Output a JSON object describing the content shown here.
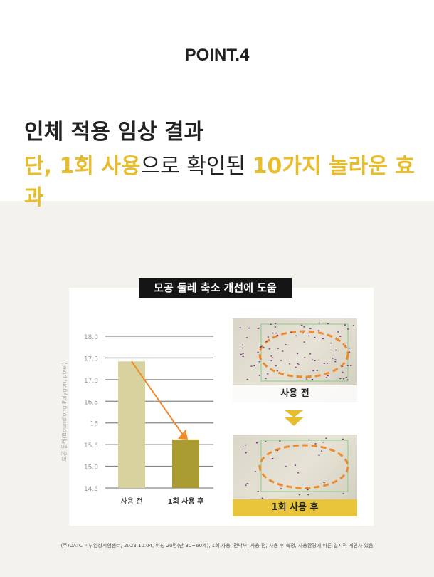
{
  "header": {
    "point": "POINT.4",
    "title": "인체 적용 임상 결과",
    "subtitle_hl1": "단, 1회 사용",
    "subtitle_mid": "으로 확인된 ",
    "subtitle_hl2": "10가지 놀라운 효과"
  },
  "card": {
    "tag": "모공 둘레 축소 개선에 도움",
    "photo_before": "사용 전",
    "photo_after": "1회 사용 후"
  },
  "chart_data": {
    "type": "bar",
    "categories": [
      "사용 전",
      "1회 사용 후"
    ],
    "values": [
      17.42,
      15.62
    ],
    "ylabel": "모공 둘레(Boundiong Polygon, pixel)",
    "ylim": [
      14.5,
      18.0
    ],
    "yticks": [
      "18.0",
      "17.5",
      "17.0",
      "16.5",
      "16",
      "15.5",
      "15.0",
      "14.5"
    ],
    "colors": [
      "#d8d29f",
      "#ab9b33"
    ],
    "arrow_color": "#f08a2c",
    "grid": true
  },
  "footnote": "(주)OATC 피부임상시험센터, 2023.10.04, 여성 20명(만 30~60세), 1회 사용, 전박부, 사용 전, 사용 후 측정, 사용환경에 따른 일시적 개인차 있음"
}
